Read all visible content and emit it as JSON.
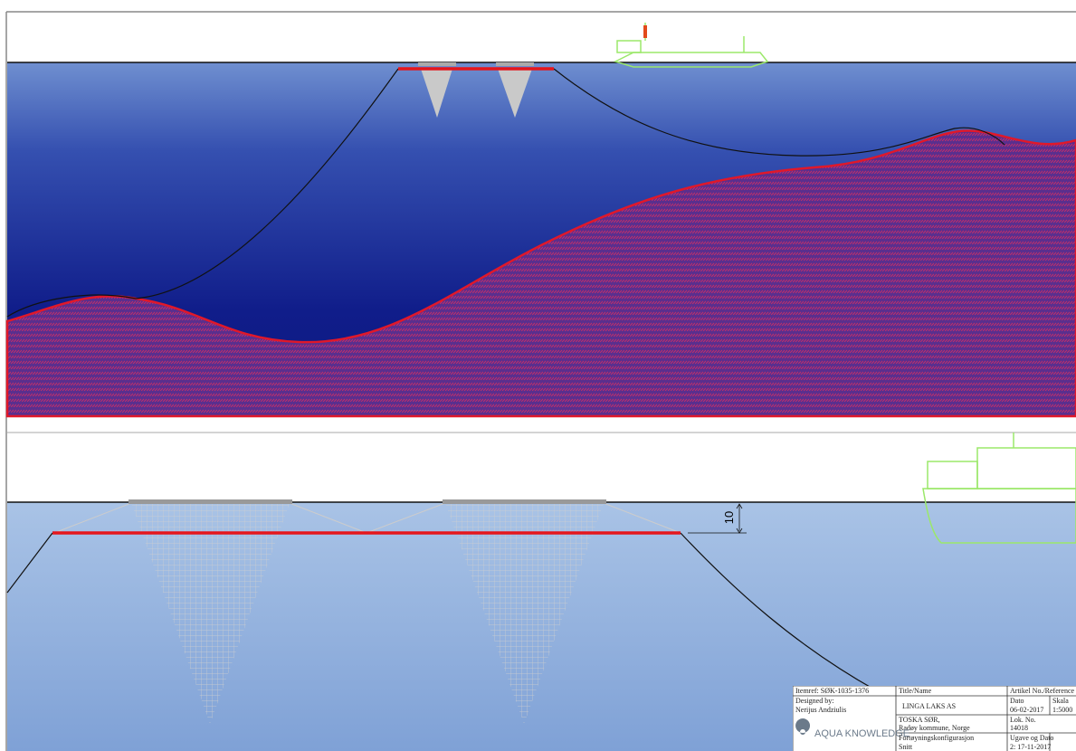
{
  "dimension": {
    "label": "10"
  },
  "title_block": {
    "itemref": "Itemref: SØK-1035-1376",
    "title_header": "Title/Name",
    "reference_header": "Artikel No./Reference",
    "designed_by_label": "Designed by:",
    "designer": "Nerijus Andziulis",
    "title": "LINGA LAKS AS",
    "date_label": "Dato",
    "date": "06-02-2017",
    "scale_label": "Skala",
    "scale": "1:5000",
    "location_line1": "TOSKA SØR,",
    "location_line2": "Radøy kommune, Norge",
    "lok_label": "Lok. No.",
    "lok": "14018",
    "company": "AQUA KNOWLEDGE",
    "config_line1": "Fortøyningskonfigurasjon",
    "config_line2": "Snitt",
    "issue_label": "Ugave og Dato",
    "issue": "2: 17-11-2017"
  }
}
